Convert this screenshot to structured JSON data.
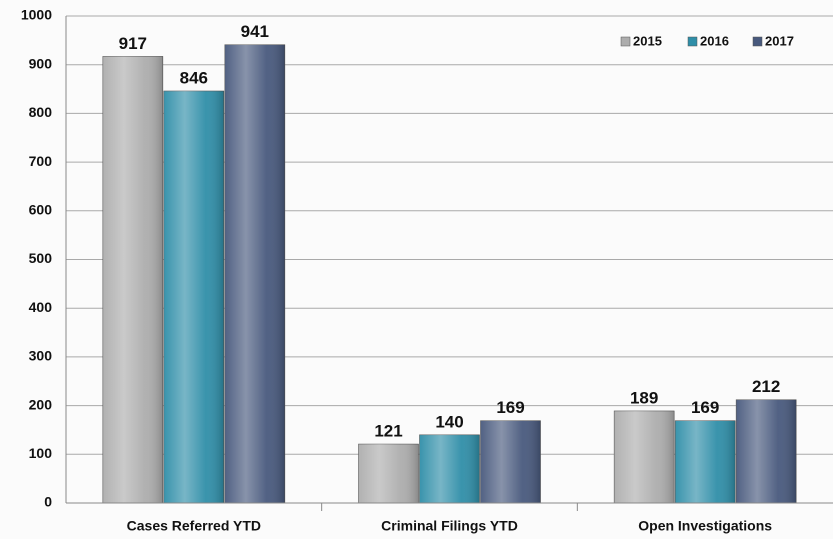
{
  "chart_data": {
    "type": "bar",
    "categories": [
      "Cases Referred YTD",
      "Criminal Filings YTD",
      "Open Investigations"
    ],
    "series": [
      {
        "name": "2015",
        "color": "#adadad",
        "values": [
          917,
          121,
          189
        ]
      },
      {
        "name": "2016",
        "color": "#2f8ea8",
        "values": [
          846,
          140,
          169
        ]
      },
      {
        "name": "2017",
        "color": "#48597d",
        "values": [
          941,
          169,
          212
        ]
      }
    ],
    "ylim": [
      0,
      1000
    ],
    "yticks": [
      0,
      100,
      200,
      300,
      400,
      500,
      600,
      700,
      800,
      900,
      1000
    ],
    "grid": true,
    "legend": "top-right"
  }
}
